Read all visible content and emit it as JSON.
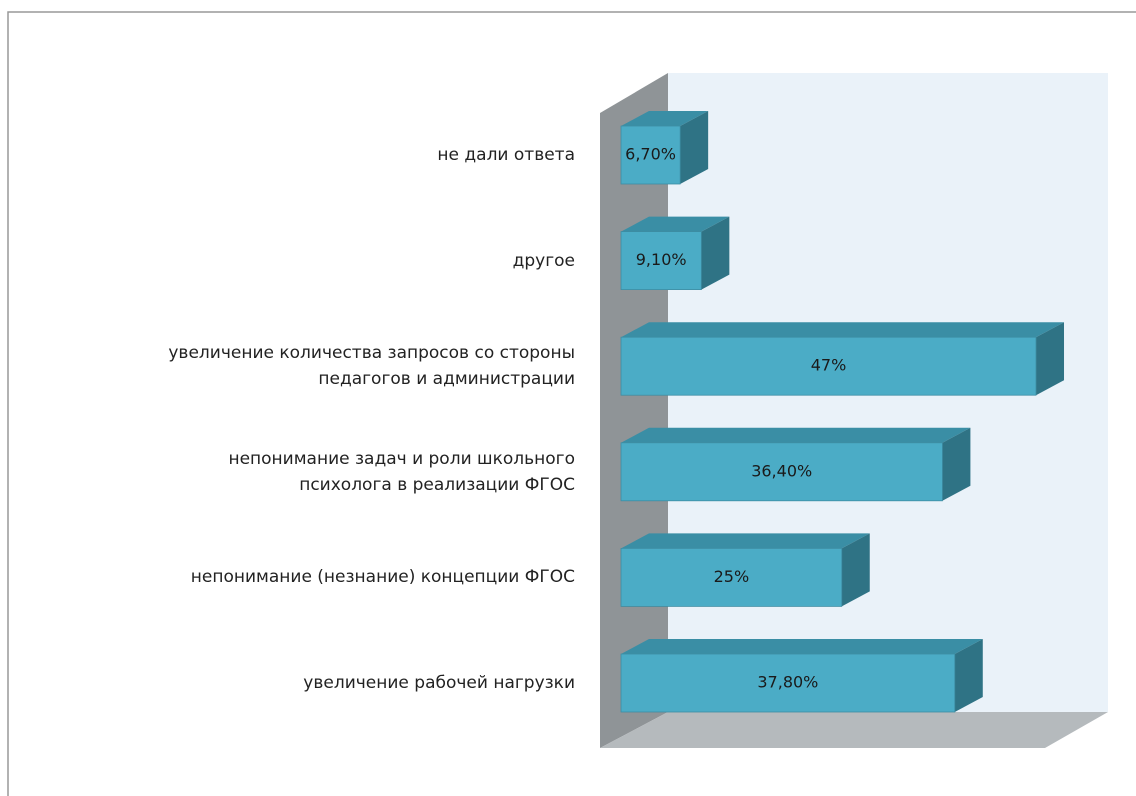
{
  "chart_data": {
    "type": "bar3d_horizontal",
    "categories": [
      "не дали ответа",
      "другое",
      "увеличение количества запросов со стороны\nпедагогов и администрации",
      "непонимание задач и роли школьного\nпсихолога в реализации ФГОС",
      "непонимание (незнание)  концепции ФГОС",
      "увеличение рабочей нагрузки"
    ],
    "values": [
      6.7,
      9.1,
      47,
      36.4,
      25,
      37.8
    ],
    "value_labels": [
      "6,70%",
      "9,10%",
      "47%",
      "36,40%",
      "25%",
      "37,80%"
    ],
    "color": "#4bacc6"
  }
}
